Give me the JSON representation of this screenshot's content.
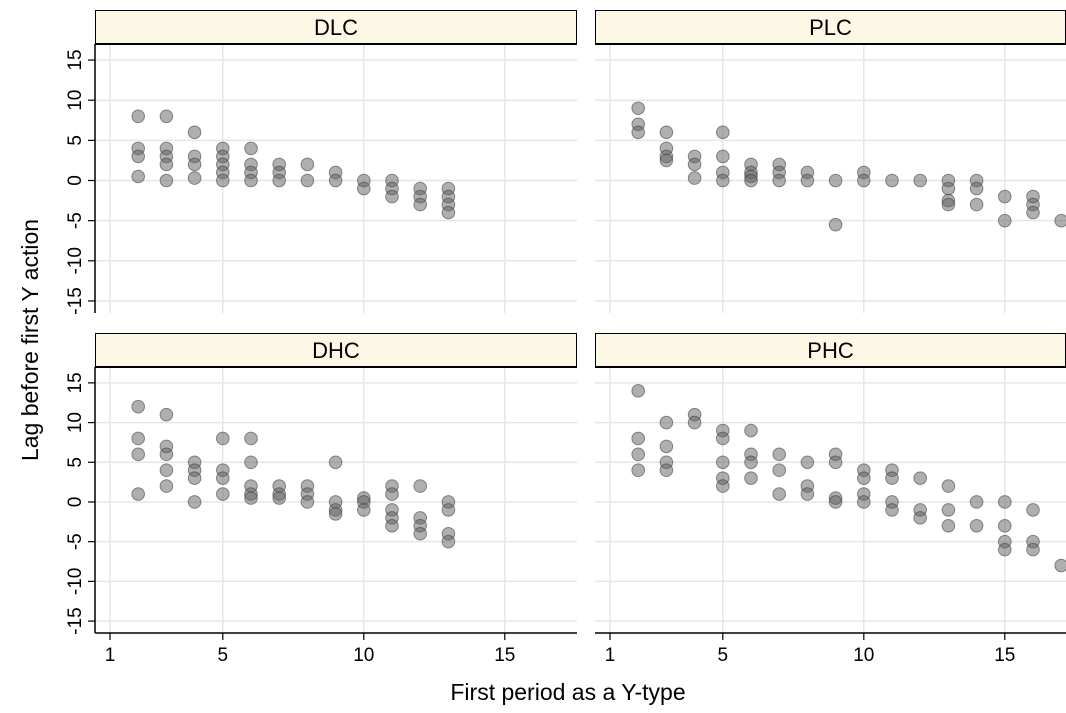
{
  "chart_data": {
    "type": "scatter",
    "xlabel": "First period as a Y-type",
    "ylabel": "Lag before first Y action",
    "xlim": [
      1,
      17.2
    ],
    "ylim": [
      -16.5,
      17
    ],
    "xticks": [
      1,
      5,
      10,
      15
    ],
    "yticks": [
      15,
      10,
      5,
      0,
      -5,
      -10,
      -15
    ],
    "ytick_labels": [
      "15",
      "10",
      "5",
      "0",
      "-5",
      "-10",
      "-15"
    ],
    "grid": true,
    "marker_color": "#606060",
    "strip_color": "#fdf7e6",
    "panels": [
      {
        "title": "DLC",
        "points": [
          [
            2,
            8
          ],
          [
            2,
            4
          ],
          [
            2,
            3
          ],
          [
            2,
            0.5
          ],
          [
            3,
            8
          ],
          [
            3,
            4
          ],
          [
            3,
            3
          ],
          [
            3,
            2
          ],
          [
            3,
            0
          ],
          [
            4,
            6
          ],
          [
            4,
            3
          ],
          [
            4,
            2
          ],
          [
            4,
            0.3
          ],
          [
            5,
            4
          ],
          [
            5,
            3
          ],
          [
            5,
            2
          ],
          [
            5,
            1
          ],
          [
            5,
            0
          ],
          [
            6,
            4
          ],
          [
            6,
            2
          ],
          [
            6,
            1
          ],
          [
            6,
            0
          ],
          [
            7,
            2
          ],
          [
            7,
            1
          ],
          [
            7,
            0
          ],
          [
            8,
            2
          ],
          [
            8,
            0
          ],
          [
            9,
            1
          ],
          [
            9,
            0
          ],
          [
            10,
            0
          ],
          [
            10,
            -1
          ],
          [
            11,
            0
          ],
          [
            11,
            -1
          ],
          [
            11,
            -2
          ],
          [
            12,
            -1
          ],
          [
            12,
            -2
          ],
          [
            12,
            -3
          ],
          [
            13,
            -1
          ],
          [
            13,
            -2
          ],
          [
            13,
            -3
          ],
          [
            13,
            -4
          ]
        ]
      },
      {
        "title": "PLC",
        "points": [
          [
            2,
            9
          ],
          [
            2,
            7
          ],
          [
            2,
            6
          ],
          [
            3,
            6
          ],
          [
            3,
            4
          ],
          [
            3,
            3
          ],
          [
            3,
            2.5
          ],
          [
            4,
            3
          ],
          [
            4,
            2
          ],
          [
            4,
            0.3
          ],
          [
            5,
            6
          ],
          [
            5,
            3
          ],
          [
            5,
            1
          ],
          [
            5,
            0
          ],
          [
            6,
            2
          ],
          [
            6,
            1
          ],
          [
            6,
            0.5
          ],
          [
            6,
            0
          ],
          [
            7,
            2
          ],
          [
            7,
            1
          ],
          [
            7,
            0
          ],
          [
            8,
            1
          ],
          [
            8,
            0
          ],
          [
            9,
            0
          ],
          [
            9,
            -5.5
          ],
          [
            10,
            1
          ],
          [
            10,
            0
          ],
          [
            11,
            0
          ],
          [
            12,
            0
          ],
          [
            13,
            0
          ],
          [
            13,
            -1
          ],
          [
            13,
            -2.5
          ],
          [
            13,
            -3
          ],
          [
            14,
            0
          ],
          [
            14,
            -1
          ],
          [
            14,
            -3
          ],
          [
            15,
            -2
          ],
          [
            15,
            -5
          ],
          [
            16,
            -2
          ],
          [
            16,
            -3
          ],
          [
            16,
            -4
          ],
          [
            17,
            -5
          ]
        ]
      },
      {
        "title": "DHC",
        "points": [
          [
            2,
            12
          ],
          [
            2,
            8
          ],
          [
            2,
            6
          ],
          [
            2,
            1
          ],
          [
            3,
            11
          ],
          [
            3,
            7
          ],
          [
            3,
            6
          ],
          [
            3,
            4
          ],
          [
            3,
            2
          ],
          [
            4,
            5
          ],
          [
            4,
            4
          ],
          [
            4,
            3
          ],
          [
            4,
            0
          ],
          [
            5,
            8
          ],
          [
            5,
            4
          ],
          [
            5,
            3
          ],
          [
            5,
            1
          ],
          [
            6,
            8
          ],
          [
            6,
            5
          ],
          [
            6,
            2
          ],
          [
            6,
            1
          ],
          [
            6,
            0.5
          ],
          [
            7,
            2
          ],
          [
            7,
            1
          ],
          [
            7,
            0.5
          ],
          [
            8,
            2
          ],
          [
            8,
            1
          ],
          [
            8,
            0
          ],
          [
            9,
            5
          ],
          [
            9,
            0
          ],
          [
            9,
            -1
          ],
          [
            9,
            -1.5
          ],
          [
            10,
            0.5
          ],
          [
            10,
            0
          ],
          [
            10,
            -1
          ],
          [
            11,
            2
          ],
          [
            11,
            1
          ],
          [
            11,
            -1
          ],
          [
            11,
            -2
          ],
          [
            11,
            -3
          ],
          [
            12,
            2
          ],
          [
            12,
            -2
          ],
          [
            12,
            -3
          ],
          [
            12,
            -4
          ],
          [
            13,
            0
          ],
          [
            13,
            -1
          ],
          [
            13,
            -4
          ],
          [
            13,
            -5
          ]
        ]
      },
      {
        "title": "PHC",
        "points": [
          [
            2,
            14
          ],
          [
            2,
            8
          ],
          [
            2,
            6
          ],
          [
            2,
            4
          ],
          [
            3,
            10
          ],
          [
            3,
            7
          ],
          [
            3,
            5
          ],
          [
            3,
            4
          ],
          [
            4,
            11
          ],
          [
            4,
            10
          ],
          [
            5,
            9
          ],
          [
            5,
            8
          ],
          [
            5,
            5
          ],
          [
            5,
            3
          ],
          [
            5,
            2
          ],
          [
            6,
            9
          ],
          [
            6,
            6
          ],
          [
            6,
            5
          ],
          [
            6,
            3
          ],
          [
            7,
            6
          ],
          [
            7,
            4
          ],
          [
            7,
            1
          ],
          [
            8,
            5
          ],
          [
            8,
            2
          ],
          [
            8,
            1
          ],
          [
            9,
            6
          ],
          [
            9,
            5
          ],
          [
            9,
            0.5
          ],
          [
            9,
            0
          ],
          [
            10,
            4
          ],
          [
            10,
            3
          ],
          [
            10,
            1
          ],
          [
            10,
            0
          ],
          [
            11,
            4
          ],
          [
            11,
            3
          ],
          [
            11,
            0
          ],
          [
            11,
            -1
          ],
          [
            12,
            3
          ],
          [
            12,
            -1
          ],
          [
            12,
            -2
          ],
          [
            13,
            2
          ],
          [
            13,
            -1
          ],
          [
            13,
            -3
          ],
          [
            14,
            0
          ],
          [
            14,
            -3
          ],
          [
            15,
            0
          ],
          [
            15,
            -3
          ],
          [
            15,
            -5
          ],
          [
            15,
            -6
          ],
          [
            16,
            -1
          ],
          [
            16,
            -5
          ],
          [
            16,
            -6
          ],
          [
            17,
            -8
          ]
        ]
      }
    ]
  }
}
